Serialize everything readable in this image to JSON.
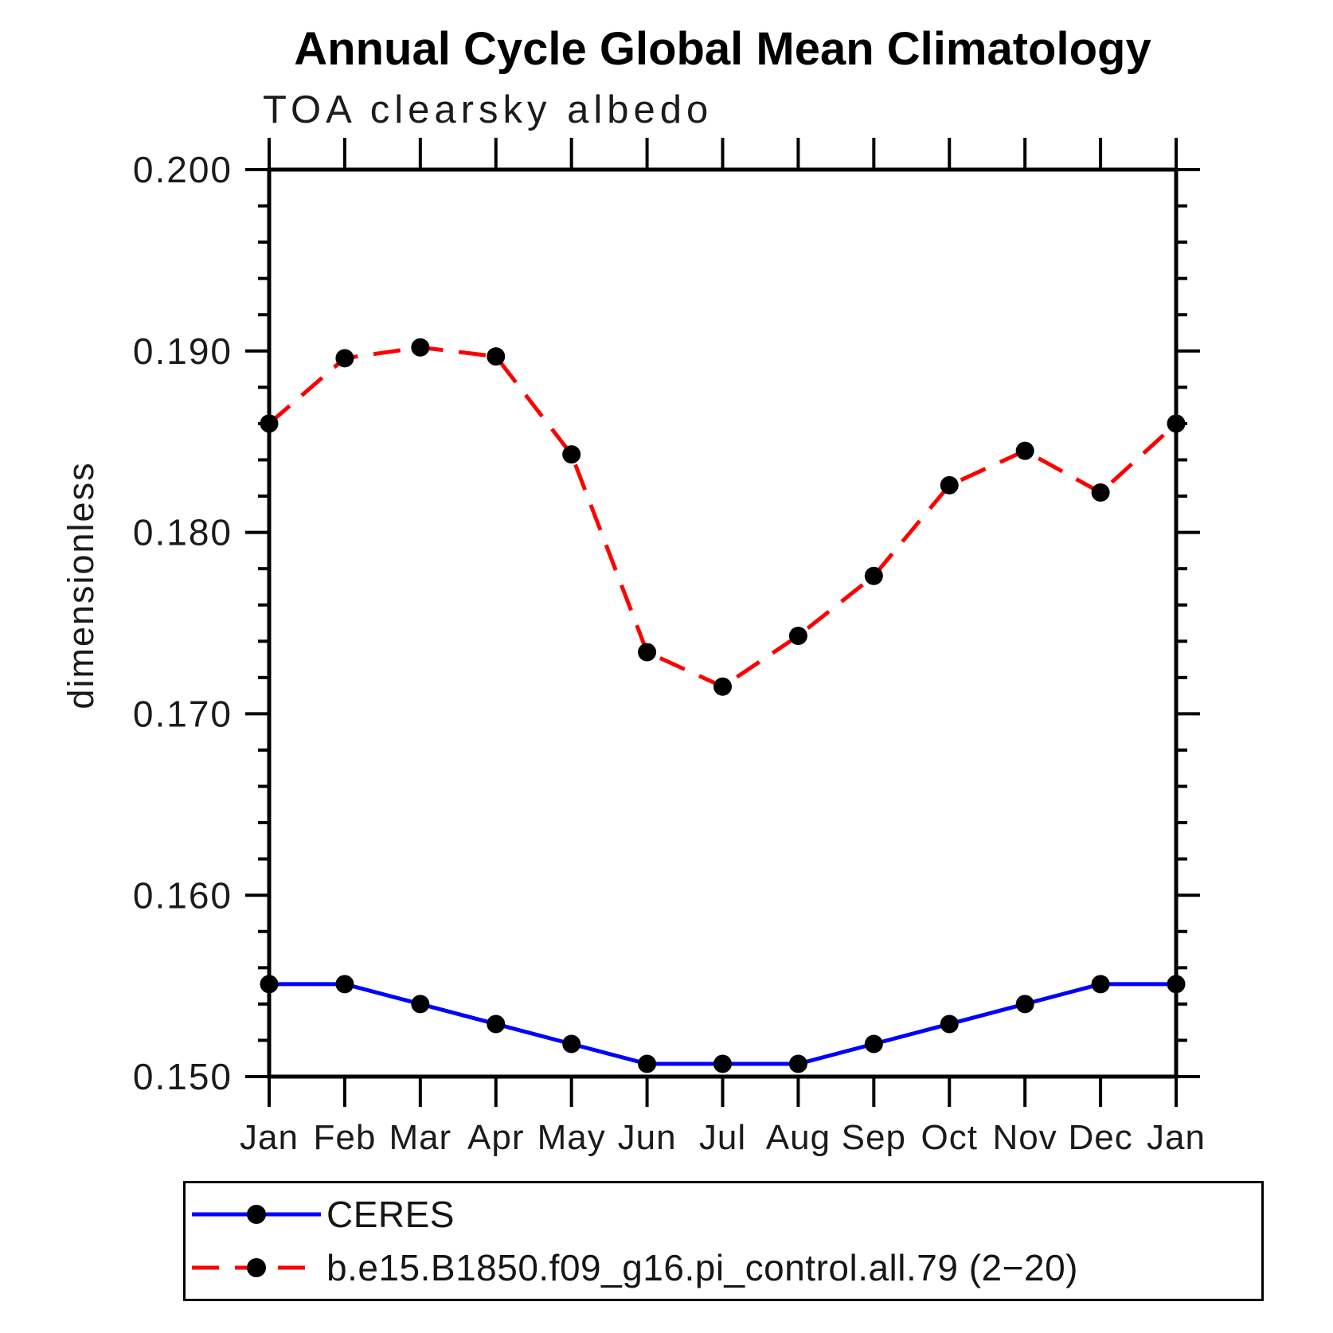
{
  "chart_data": {
    "type": "line",
    "title": "Annual Cycle Global Mean Climatology",
    "subtitle": "TOA clearsky albedo",
    "ylabel": "dimensionless",
    "xlabel": "",
    "categories": [
      "Jan",
      "Feb",
      "Mar",
      "Apr",
      "May",
      "Jun",
      "Jul",
      "Aug",
      "Sep",
      "Oct",
      "Nov",
      "Dec",
      "Jan"
    ],
    "ylim": [
      0.15,
      0.2
    ],
    "ytick_values": [
      0.15,
      0.16,
      0.17,
      0.18,
      0.19,
      0.2
    ],
    "ytick_labels": [
      "0.150",
      "0.160",
      "0.170",
      "0.180",
      "0.190",
      "0.200"
    ],
    "minor_tick_step": 0.002,
    "grid": false,
    "legend_position": "bottom",
    "marker_color": "#000000",
    "series": [
      {
        "name": "CERES",
        "color": "#0000ff",
        "style": "solid",
        "values": [
          0.1551,
          0.1551,
          0.154,
          0.1529,
          0.1518,
          0.1507,
          0.1507,
          0.1507,
          0.1518,
          0.1529,
          0.154,
          0.1551,
          0.1551
        ]
      },
      {
        "name": "b.e15.B1850.f09_g16.pi_control.all.79 (2−20)",
        "color": "#ff0000",
        "style": "dashed",
        "values": [
          0.186,
          0.1896,
          0.1902,
          0.1897,
          0.1843,
          0.1734,
          0.1715,
          0.1743,
          0.1776,
          0.1826,
          0.1845,
          0.1822,
          0.186
        ]
      }
    ]
  }
}
